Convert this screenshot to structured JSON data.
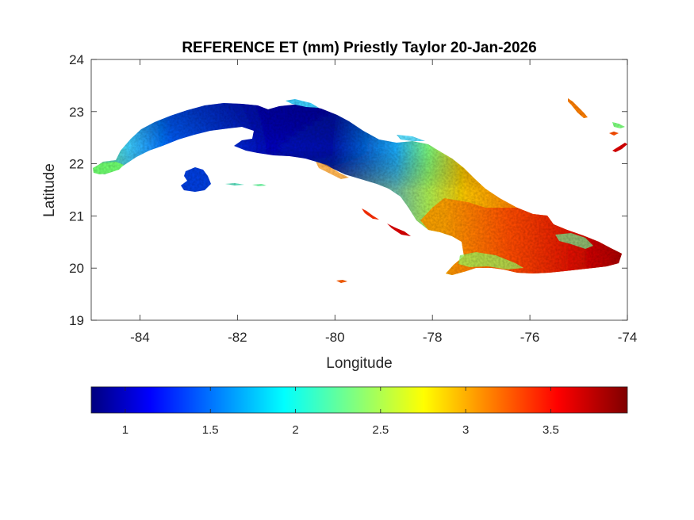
{
  "title": "REFERENCE ET (mm) Priestly Taylor 20-Jan-2026",
  "map": {
    "xlabel": "Longitude",
    "ylabel": "Latitude",
    "xlim": [
      -85,
      -74
    ],
    "ylim": [
      19,
      24
    ],
    "xticks": [
      -84,
      -82,
      -80,
      -78,
      -76,
      -74
    ],
    "yticks": [
      20,
      21,
      22,
      23,
      24,
      19
    ],
    "xtick_labels": [
      "-84",
      "-82",
      "-80",
      "-78",
      "-76",
      "-74"
    ],
    "ytick_labels": [
      "20",
      "21",
      "22",
      "23",
      "24",
      "19"
    ],
    "grid": false
  },
  "colorbar": {
    "colormap": "jet",
    "orientation": "horizontal",
    "placement": "below",
    "range": [
      0.8,
      3.95
    ],
    "ticks": [
      1,
      1.5,
      2,
      2.5,
      3,
      3.5
    ],
    "tick_labels": [
      "1",
      "1.5",
      "2",
      "2.5",
      "3",
      "3.5"
    ]
  },
  "colors": {
    "low": "#00007f",
    "mid": "#00ffff",
    "high": "#7f0000",
    "axes": "#262626",
    "background": "#ffffff"
  }
}
